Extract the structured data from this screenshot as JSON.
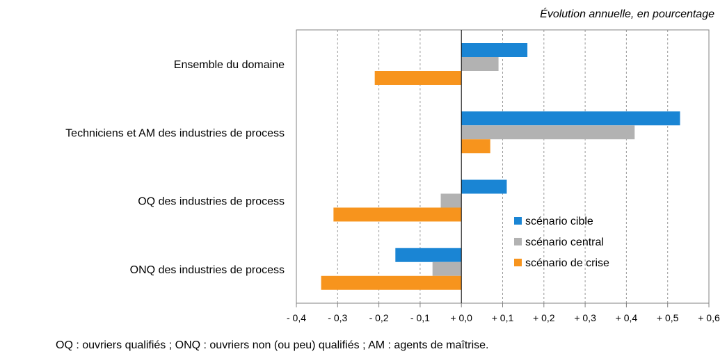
{
  "unit_note": "Évolution annuelle, en pourcentage",
  "footnote": "OQ : ouvriers qualifiés ; ONQ : ouvriers non (ou peu) qualifiés ; AM : agents de maîtrise.",
  "chart_data": {
    "type": "bar",
    "orientation": "horizontal",
    "title": "",
    "xlabel": "",
    "ylabel": "",
    "categories": [
      "Ensemble du domaine",
      "Techniciens et AM des industries de process",
      "OQ des industries de process",
      "ONQ des industries de process"
    ],
    "series": [
      {
        "name": "scénario cible",
        "color": "#1a85d4",
        "values": [
          0.16,
          0.53,
          0.11,
          -0.16
        ]
      },
      {
        "name": "scénario central",
        "color": "#b2b2b2",
        "values": [
          0.09,
          0.42,
          -0.05,
          -0.07
        ]
      },
      {
        "name": "scénario de crise",
        "color": "#f7941d",
        "values": [
          -0.21,
          0.07,
          -0.31,
          -0.34
        ]
      }
    ],
    "xlim": [
      -0.4,
      0.6
    ],
    "xticks": [
      -0.4,
      -0.3,
      -0.2,
      -0.1,
      0.0,
      0.1,
      0.2,
      0.3,
      0.4,
      0.5,
      0.6
    ],
    "xtick_labels": [
      "- 0,4",
      "- 0,3",
      "- 0,2",
      "- 0,1",
      "+ 0,0",
      "+ 0,1",
      "+ 0,2",
      "+ 0,3",
      "+ 0,4",
      "+ 0,5",
      "+ 0,6"
    ],
    "grid": "vertical dashed",
    "legend": "bottom-right"
  }
}
